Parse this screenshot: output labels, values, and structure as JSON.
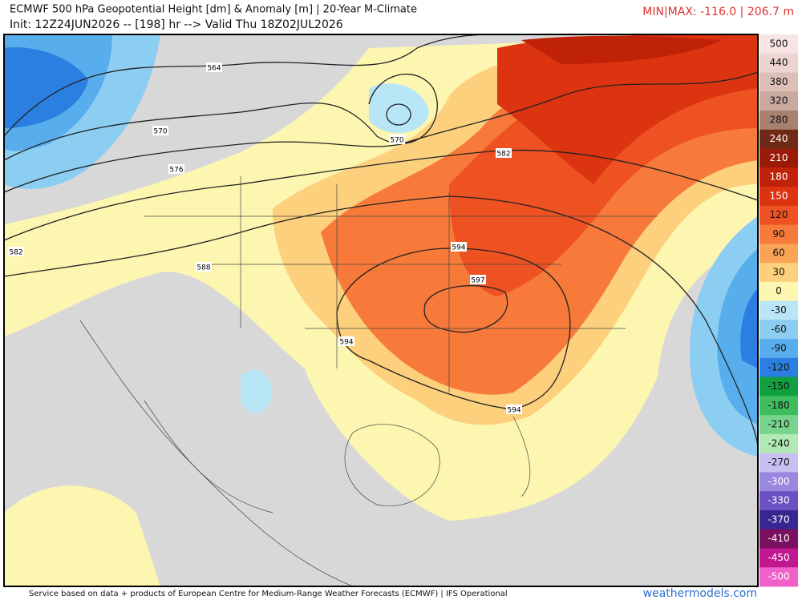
{
  "header": {
    "title": "ECMWF 500 hPa Geopotential Height [dm] & Anomaly [m] | 20-Year M-Climate",
    "subtitle": "Init: 12Z24JUN2026 -- [198] hr --> Valid Thu 18Z02JUL2026",
    "min_max": "MIN|MAX: -116.0 | 206.7 m"
  },
  "map": {
    "contour_labels": [
      564,
      570,
      576,
      582,
      588,
      570,
      582,
      594,
      597,
      594,
      594
    ]
  },
  "colorbar": {
    "levels": [
      {
        "value": 500,
        "color": "#f7e4e4"
      },
      {
        "value": 440,
        "color": "#ecd4d0"
      },
      {
        "value": 380,
        "color": "#dcc0b8"
      },
      {
        "value": 320,
        "color": "#c9a99e"
      },
      {
        "value": 280,
        "color": "#a88070"
      },
      {
        "value": 240,
        "color": "#6e2a14"
      },
      {
        "value": 210,
        "color": "#9a1a08"
      },
      {
        "value": 180,
        "color": "#c02208"
      },
      {
        "value": 150,
        "color": "#dc3410"
      },
      {
        "value": 120,
        "color": "#ee5222"
      },
      {
        "value": 90,
        "color": "#f77a3a"
      },
      {
        "value": 60,
        "color": "#fba456"
      },
      {
        "value": 30,
        "color": "#fdd07e"
      },
      {
        "value": 0,
        "color": "#fdf6b0"
      },
      {
        "value": -30,
        "color": "#b8e6f6"
      },
      {
        "value": -60,
        "color": "#8ccdf2"
      },
      {
        "value": -90,
        "color": "#58aeec"
      },
      {
        "value": -120,
        "color": "#2a7fe0"
      },
      {
        "value": -150,
        "color": "#10a040"
      },
      {
        "value": -180,
        "color": "#3ebc5e"
      },
      {
        "value": -210,
        "color": "#78d48c"
      },
      {
        "value": -240,
        "color": "#b2eab6"
      },
      {
        "value": -270,
        "color": "#c8c0f0"
      },
      {
        "value": -300,
        "color": "#9a88e0"
      },
      {
        "value": -330,
        "color": "#6a52c4"
      },
      {
        "value": -370,
        "color": "#3a2690"
      },
      {
        "value": -410,
        "color": "#7a1060"
      },
      {
        "value": -450,
        "color": "#c01890"
      },
      {
        "value": -500,
        "color": "#f060c8"
      }
    ]
  },
  "footer": {
    "credit": "Service based on data + products of European Centre for Medium-Range Weather Forecasts (ECMWF) | IFS Operational",
    "site": "weathermodels.com"
  }
}
